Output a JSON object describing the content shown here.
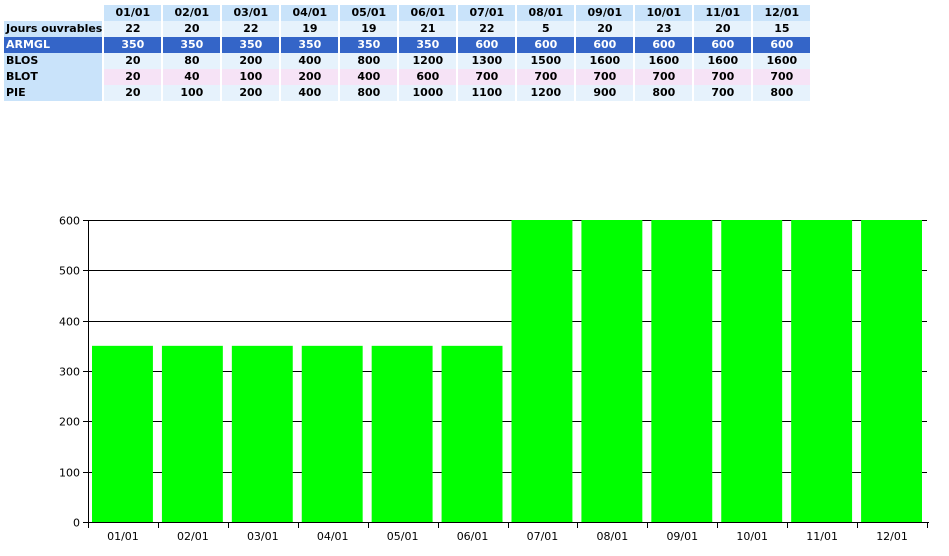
{
  "colors": {
    "header_bg": "#c9e3fa",
    "row_light_bg": "#e6f2fc",
    "row_pink_bg": "#f6e3f6",
    "row_highlight_bg": "#3465c8",
    "row_highlight_fg": "#ffffff",
    "bar": "#00ff00"
  },
  "table": {
    "columns": [
      "01/01",
      "02/01",
      "03/01",
      "04/01",
      "05/01",
      "06/01",
      "07/01",
      "08/01",
      "09/01",
      "10/01",
      "11/01",
      "12/01"
    ],
    "rows": [
      {
        "label": "Jours ouvrables",
        "style": "light",
        "values": [
          "22",
          "20",
          "22",
          "19",
          "19",
          "21",
          "22",
          "5",
          "20",
          "23",
          "20",
          "15"
        ]
      },
      {
        "label": "ARMGL",
        "style": "highlight",
        "values": [
          "350",
          "350",
          "350",
          "350",
          "350",
          "350",
          "600",
          "600",
          "600",
          "600",
          "600",
          "600"
        ]
      },
      {
        "label": "BLOS",
        "style": "light",
        "values": [
          "20",
          "80",
          "200",
          "400",
          "800",
          "1200",
          "1300",
          "1500",
          "1600",
          "1600",
          "1600",
          "1600"
        ]
      },
      {
        "label": "BLOT",
        "style": "pink",
        "values": [
          "20",
          "40",
          "100",
          "200",
          "400",
          "600",
          "700",
          "700",
          "700",
          "700",
          "700",
          "700"
        ]
      },
      {
        "label": "PIE",
        "style": "light",
        "values": [
          "20",
          "100",
          "200",
          "400",
          "800",
          "1000",
          "1100",
          "1200",
          "900",
          "800",
          "700",
          "800"
        ]
      }
    ]
  },
  "chart_data": {
    "type": "bar",
    "title": "",
    "xlabel": "",
    "ylabel": "",
    "categories": [
      "01/01",
      "02/01",
      "03/01",
      "04/01",
      "05/01",
      "06/01",
      "07/01",
      "08/01",
      "09/01",
      "10/01",
      "11/01",
      "12/01"
    ],
    "values": [
      350,
      350,
      350,
      350,
      350,
      350,
      600,
      600,
      600,
      600,
      600,
      600
    ],
    "ylim": [
      0,
      600
    ],
    "yticks": [
      0,
      100,
      200,
      300,
      400,
      500,
      600
    ],
    "grid": true,
    "legend": "none"
  }
}
